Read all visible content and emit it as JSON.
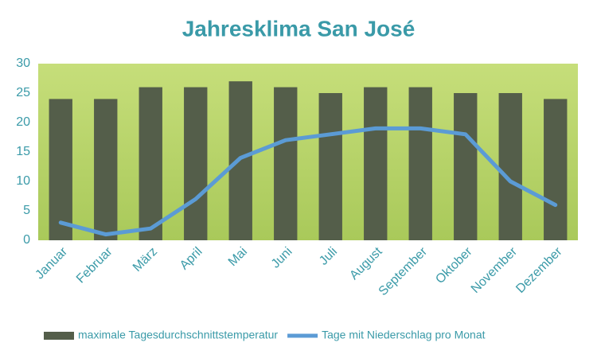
{
  "chart_data": {
    "type": "bar",
    "title": "Jahresklima San José",
    "categories": [
      "Januar",
      "Februar",
      "März",
      "April",
      "Mai",
      "Juni",
      "Juli",
      "August",
      "September",
      "Oktober",
      "November",
      "Dezember"
    ],
    "series": [
      {
        "name": "maximale Tagesdurchschnittstemperatur",
        "type": "bar",
        "color": "#545e4a",
        "values": [
          24,
          24,
          26,
          26,
          27,
          26,
          25,
          26,
          26,
          25,
          25,
          24
        ]
      },
      {
        "name": "Tage mit Niederschlag pro Monat",
        "type": "line",
        "color": "#5b9bd5",
        "values": [
          3,
          1,
          2,
          7,
          14,
          17,
          18,
          19,
          19,
          18,
          10,
          6
        ]
      }
    ],
    "ylim": [
      0,
      30
    ],
    "yticks": [
      0,
      5,
      10,
      15,
      20,
      25,
      30
    ],
    "legend": "bottom"
  }
}
